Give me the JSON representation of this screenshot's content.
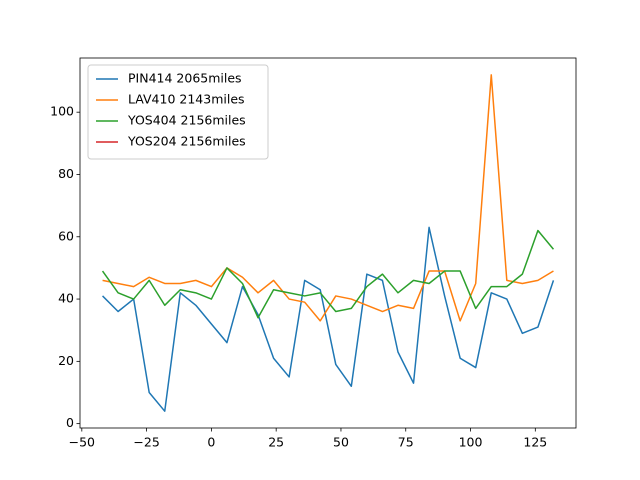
{
  "chart_data": {
    "type": "line",
    "x": [
      -42,
      -36,
      -30,
      -24,
      -18,
      -12,
      -6,
      0,
      6,
      12,
      18,
      24,
      30,
      36,
      42,
      48,
      54,
      60,
      66,
      72,
      78,
      84,
      90,
      96,
      102,
      108,
      114,
      120,
      126,
      132
    ],
    "series": [
      {
        "name": "PIN414 2065miles",
        "color": "#1f77b4",
        "values": [
          41,
          36,
          40,
          10,
          4,
          42,
          38,
          32,
          26,
          44,
          35,
          21,
          15,
          46,
          43,
          19,
          12,
          48,
          46,
          23,
          13,
          63,
          41,
          21,
          18,
          42,
          40,
          29,
          31,
          46
        ]
      },
      {
        "name": "LAV410 2143miles",
        "color": "#ff7f0e",
        "values": [
          46,
          45,
          44,
          47,
          45,
          45,
          46,
          44,
          50,
          47,
          42,
          46,
          40,
          39,
          33,
          41,
          40,
          38,
          36,
          38,
          37,
          49,
          49,
          33,
          45,
          112,
          46,
          45,
          46,
          49
        ]
      },
      {
        "name": "YOS404 2156miles",
        "color": "#2ca02c",
        "values": [
          49,
          42,
          40,
          46,
          38,
          43,
          42,
          40,
          50,
          45,
          34,
          43,
          42,
          41,
          42,
          36,
          37,
          44,
          48,
          42,
          46,
          45,
          49,
          49,
          37,
          44,
          44,
          48,
          62,
          56
        ]
      },
      {
        "name": "YOS204 2156miles",
        "color": "#d62728",
        "values": [
          null,
          null,
          null,
          null,
          null,
          null,
          null,
          null,
          null,
          null,
          null,
          null,
          null,
          null,
          null,
          null,
          null,
          null,
          null,
          null,
          null,
          null,
          null,
          null,
          null,
          null,
          null,
          null,
          null,
          null
        ]
      }
    ],
    "xlim": [
      -50.7,
      140.7
    ],
    "ylim": [
      -1.4,
      117.4
    ],
    "xticks": [
      {
        "value": -50,
        "label": "−50"
      },
      {
        "value": -25,
        "label": "−25"
      },
      0,
      25,
      50,
      75,
      100,
      125
    ],
    "yticks": [
      0,
      20,
      40,
      60,
      80,
      100
    ],
    "legend": "upper left"
  }
}
